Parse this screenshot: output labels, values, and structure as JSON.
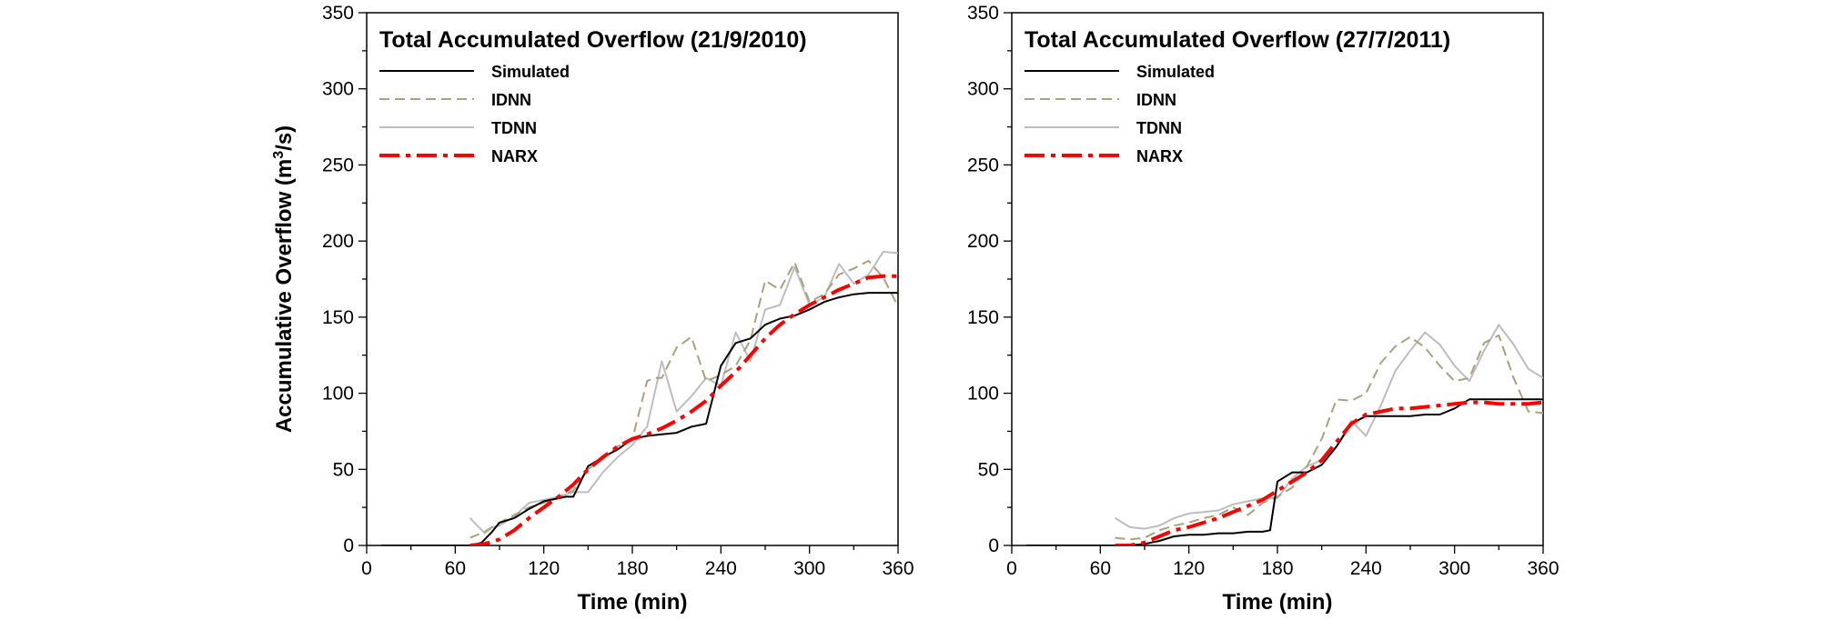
{
  "chart_data": [
    {
      "type": "line",
      "title": "Total Accumulated Overflow (21/9/2010)",
      "xlabel": "Time (min)",
      "ylabel": "Accumulative Overflow (m3/s)",
      "ylabel_parts": {
        "pre": "Accumulative Overflow (m",
        "sup": "3",
        "post": "/s)"
      },
      "xlim": [
        0,
        360
      ],
      "ylim": [
        0,
        350
      ],
      "xticks": [
        0,
        60,
        120,
        180,
        240,
        300,
        360
      ],
      "yticks": [
        0,
        50,
        100,
        150,
        200,
        250,
        300,
        350
      ],
      "legend_position": "top-left",
      "series": [
        {
          "name": "Simulated",
          "color": "#000000",
          "style": "solid",
          "x": [
            10,
            60,
            72,
            78,
            85,
            90,
            100,
            110,
            120,
            130,
            135,
            140,
            150,
            160,
            170,
            180,
            190,
            200,
            210,
            220,
            230,
            240,
            250,
            260,
            270,
            280,
            290,
            300,
            310,
            320,
            330,
            340,
            360
          ],
          "y": [
            0,
            0,
            0,
            2,
            9,
            15,
            18,
            24,
            29,
            31,
            32,
            32,
            52,
            58,
            63,
            70,
            72,
            73,
            74,
            78,
            80,
            118,
            133,
            136,
            145,
            149,
            151,
            155,
            160,
            163,
            165,
            166,
            166
          ]
        },
        {
          "name": "IDNN",
          "color": "#a9a27a",
          "style": "dashed",
          "x": [
            70,
            80,
            85,
            90,
            100,
            110,
            120,
            130,
            140,
            150,
            160,
            170,
            180,
            190,
            195,
            200,
            210,
            220,
            230,
            240,
            250,
            260,
            270,
            280,
            290,
            300,
            310,
            320,
            330,
            340,
            350,
            360
          ],
          "y": [
            5,
            9,
            12,
            15,
            20,
            25,
            28,
            32,
            36,
            50,
            57,
            65,
            70,
            108,
            110,
            110,
            130,
            137,
            108,
            112,
            118,
            135,
            174,
            168,
            186,
            160,
            165,
            178,
            182,
            187,
            176,
            157
          ]
        },
        {
          "name": "TDNN",
          "color": "#bdbdbd",
          "style": "solid",
          "x": [
            70,
            80,
            85,
            90,
            100,
            110,
            120,
            130,
            140,
            150,
            160,
            170,
            180,
            190,
            200,
            210,
            220,
            230,
            240,
            250,
            260,
            270,
            280,
            290,
            300,
            310,
            320,
            330,
            340,
            350,
            360
          ],
          "y": [
            18,
            8,
            12,
            13,
            19,
            28,
            30,
            32,
            35,
            35,
            48,
            58,
            66,
            78,
            121,
            88,
            98,
            110,
            105,
            140,
            121,
            155,
            158,
            183,
            158,
            163,
            185,
            172,
            178,
            193,
            192
          ]
        },
        {
          "name": "NARX",
          "color": "#ff0000",
          "style": "dashdot",
          "x": [
            70,
            80,
            90,
            100,
            110,
            120,
            130,
            140,
            150,
            160,
            170,
            180,
            190,
            200,
            210,
            220,
            230,
            240,
            250,
            260,
            270,
            280,
            290,
            300,
            310,
            320,
            330,
            340,
            350,
            360
          ],
          "y": [
            0,
            1,
            4,
            10,
            18,
            25,
            32,
            40,
            50,
            58,
            65,
            70,
            73,
            77,
            82,
            88,
            95,
            105,
            114,
            125,
            136,
            145,
            152,
            158,
            163,
            168,
            172,
            176,
            177,
            177
          ]
        }
      ]
    },
    {
      "type": "line",
      "title": "Total Accumulated Overflow (27/7/2011)",
      "xlabel": "Time (min)",
      "xlim": [
        0,
        360
      ],
      "ylim": [
        0,
        350
      ],
      "xticks": [
        0,
        60,
        120,
        180,
        240,
        300,
        360
      ],
      "yticks": [
        0,
        50,
        100,
        150,
        200,
        250,
        300,
        350
      ],
      "legend_position": "top-left",
      "series": [
        {
          "name": "Simulated",
          "color": "#000000",
          "style": "solid",
          "x": [
            10,
            60,
            80,
            90,
            100,
            110,
            120,
            130,
            140,
            150,
            160,
            170,
            175,
            180,
            190,
            200,
            210,
            220,
            230,
            240,
            250,
            260,
            270,
            280,
            290,
            300,
            310,
            320,
            330,
            340,
            350,
            360
          ],
          "y": [
            0,
            0,
            0,
            1,
            3,
            6,
            7,
            7,
            8,
            8,
            9,
            9,
            10,
            42,
            48,
            48,
            53,
            65,
            80,
            85,
            85,
            85,
            85,
            86,
            86,
            90,
            96,
            96,
            96,
            96,
            96,
            96
          ]
        },
        {
          "name": "IDNN",
          "color": "#a9a27a",
          "style": "dashed",
          "x": [
            70,
            80,
            90,
            100,
            110,
            120,
            130,
            140,
            150,
            160,
            170,
            180,
            190,
            200,
            210,
            220,
            230,
            240,
            250,
            260,
            270,
            280,
            290,
            300,
            310,
            320,
            330,
            340,
            350,
            360
          ],
          "y": [
            5,
            4,
            5,
            10,
            13,
            15,
            18,
            20,
            25,
            20,
            28,
            32,
            38,
            52,
            70,
            96,
            95,
            100,
            120,
            131,
            137,
            130,
            118,
            108,
            110,
            133,
            138,
            110,
            88,
            87
          ]
        },
        {
          "name": "TDNN",
          "color": "#bdbdbd",
          "style": "solid",
          "x": [
            70,
            80,
            90,
            100,
            110,
            120,
            130,
            140,
            150,
            160,
            170,
            180,
            190,
            200,
            210,
            220,
            230,
            240,
            250,
            260,
            270,
            280,
            290,
            300,
            310,
            320,
            330,
            340,
            350,
            360
          ],
          "y": [
            18,
            12,
            11,
            13,
            18,
            21,
            22,
            23,
            27,
            29,
            31,
            31,
            44,
            52,
            56,
            65,
            82,
            72,
            92,
            115,
            128,
            140,
            132,
            118,
            108,
            128,
            145,
            132,
            116,
            110
          ]
        },
        {
          "name": "NARX",
          "color": "#ff0000",
          "style": "dashdot",
          "x": [
            70,
            80,
            90,
            100,
            110,
            120,
            130,
            140,
            150,
            160,
            170,
            180,
            190,
            200,
            210,
            220,
            230,
            240,
            250,
            260,
            270,
            280,
            290,
            300,
            310,
            320,
            330,
            340,
            350,
            360
          ],
          "y": [
            0,
            0,
            2,
            6,
            10,
            12,
            15,
            18,
            22,
            26,
            30,
            36,
            42,
            48,
            56,
            68,
            80,
            86,
            88,
            90,
            90,
            91,
            92,
            93,
            94,
            94,
            93,
            93,
            93,
            94
          ]
        }
      ]
    }
  ]
}
